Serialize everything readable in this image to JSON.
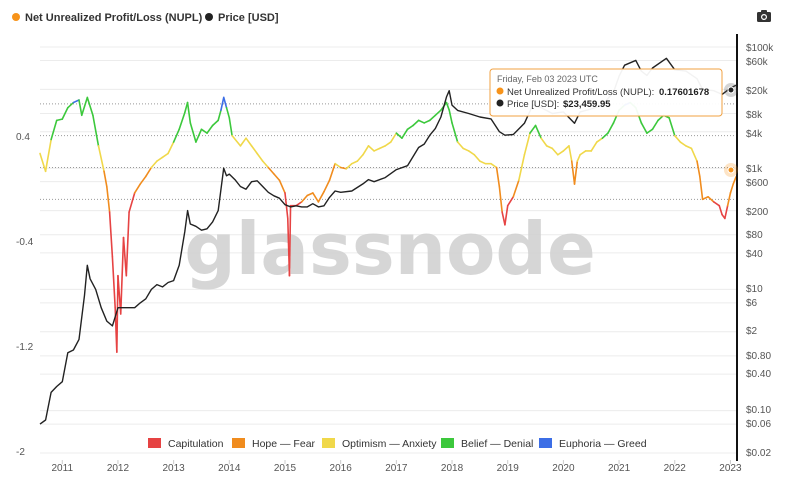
{
  "legend_top": [
    {
      "label": "Net Unrealized Profit/Loss (NUPL)",
      "color": "#f7931a"
    },
    {
      "label": "Price [USD]",
      "color": "#222222"
    }
  ],
  "toolbar": {
    "camera_icon": "camera-icon"
  },
  "watermark": "glassnode",
  "tooltip": {
    "date": "Friday, Feb 03 2023 UTC",
    "nupl_label": "Net Unrealized Profit/Loss (NUPL):",
    "nupl_value": "0.17601678",
    "price_label": "Price [USD]:",
    "price_value": "$23,459.95"
  },
  "zone_legend": [
    {
      "label": "Capitulation",
      "color": "#e64343"
    },
    {
      "label": "Hope — Fear",
      "color": "#f08c1e"
    },
    {
      "label": "Optimism — Anxiety",
      "color": "#f0d84a"
    },
    {
      "label": "Belief — Denial",
      "color": "#3cc83c"
    },
    {
      "label": "Euphoria — Greed",
      "color": "#3c6ee6"
    }
  ],
  "chart_data": {
    "type": "line",
    "x_ticks": [
      "2011",
      "2012",
      "2013",
      "2014",
      "2015",
      "2016",
      "2017",
      "2018",
      "2019",
      "2020",
      "2021",
      "2022",
      "2023"
    ],
    "x_range": [
      2010.6,
      2023.1
    ],
    "y_left": {
      "ticks": [
        "0.4",
        "-0.4",
        "-1.2",
        "-2"
      ],
      "tick_values": [
        0.4,
        -0.4,
        -1.2,
        -2
      ],
      "range": [
        -2,
        1.0
      ]
    },
    "y_right": {
      "scale": "log",
      "ticks": [
        "$100k",
        "$60k",
        "$20k",
        "$8k",
        "$4k",
        "$1k",
        "$600",
        "$200",
        "$80",
        "$40",
        "$10",
        "$6",
        "$2",
        "$0.80",
        "$0.40",
        "$0.10",
        "$0.06",
        "$0.02"
      ],
      "tick_values": [
        100000,
        60000,
        20000,
        8000,
        4000,
        1000,
        600,
        200,
        80,
        40,
        10,
        6,
        2,
        0.8,
        0.4,
        0.1,
        0.06,
        0.02
      ]
    },
    "dotted_levels": [
      0.75,
      0.5,
      0.25,
      0
    ],
    "zone_thresholds": {
      "capitulation_below": 0,
      "hope_fear_below": 0.25,
      "optimism_anxiety_below": 0.5,
      "belief_denial_below": 0.75
    },
    "series": [
      {
        "name": "Net Unrealized Profit/Loss (NUPL)",
        "axis": "left",
        "points": [
          [
            2010.6,
            0.36
          ],
          [
            2010.7,
            0.22
          ],
          [
            2010.8,
            0.47
          ],
          [
            2010.9,
            0.62
          ],
          [
            2011.0,
            0.63
          ],
          [
            2011.1,
            0.72
          ],
          [
            2011.2,
            0.76
          ],
          [
            2011.3,
            0.78
          ],
          [
            2011.35,
            0.66
          ],
          [
            2011.45,
            0.8
          ],
          [
            2011.55,
            0.66
          ],
          [
            2011.65,
            0.42
          ],
          [
            2011.75,
            0.22
          ],
          [
            2011.8,
            0.1
          ],
          [
            2011.85,
            -0.1
          ],
          [
            2011.9,
            -0.45
          ],
          [
            2011.95,
            -0.85
          ],
          [
            2011.98,
            -1.2
          ],
          [
            2012.0,
            -0.6
          ],
          [
            2012.05,
            -0.9
          ],
          [
            2012.1,
            -0.3
          ],
          [
            2012.15,
            -0.6
          ],
          [
            2012.2,
            -0.1
          ],
          [
            2012.3,
            0.05
          ],
          [
            2012.4,
            0.12
          ],
          [
            2012.5,
            0.18
          ],
          [
            2012.6,
            0.25
          ],
          [
            2012.7,
            0.3
          ],
          [
            2012.8,
            0.33
          ],
          [
            2012.9,
            0.36
          ],
          [
            2013.0,
            0.45
          ],
          [
            2013.1,
            0.55
          ],
          [
            2013.2,
            0.68
          ],
          [
            2013.25,
            0.76
          ],
          [
            2013.3,
            0.6
          ],
          [
            2013.4,
            0.45
          ],
          [
            2013.5,
            0.55
          ],
          [
            2013.6,
            0.52
          ],
          [
            2013.7,
            0.58
          ],
          [
            2013.8,
            0.62
          ],
          [
            2013.85,
            0.7
          ],
          [
            2013.9,
            0.8
          ],
          [
            2013.95,
            0.72
          ],
          [
            2014.0,
            0.64
          ],
          [
            2014.05,
            0.5
          ],
          [
            2014.2,
            0.42
          ],
          [
            2014.3,
            0.48
          ],
          [
            2014.4,
            0.42
          ],
          [
            2014.5,
            0.36
          ],
          [
            2014.6,
            0.3
          ],
          [
            2014.7,
            0.25
          ],
          [
            2014.8,
            0.2
          ],
          [
            2014.9,
            0.15
          ],
          [
            2015.0,
            0.05
          ],
          [
            2015.05,
            -0.15
          ],
          [
            2015.08,
            -0.6
          ],
          [
            2015.1,
            -0.05
          ],
          [
            2015.2,
            -0.05
          ],
          [
            2015.3,
            -0.02
          ],
          [
            2015.4,
            0.03
          ],
          [
            2015.5,
            0.05
          ],
          [
            2015.6,
            -0.02
          ],
          [
            2015.7,
            0.06
          ],
          [
            2015.8,
            0.15
          ],
          [
            2015.9,
            0.28
          ],
          [
            2016.0,
            0.25
          ],
          [
            2016.1,
            0.24
          ],
          [
            2016.2,
            0.28
          ],
          [
            2016.3,
            0.3
          ],
          [
            2016.4,
            0.35
          ],
          [
            2016.5,
            0.42
          ],
          [
            2016.6,
            0.38
          ],
          [
            2016.7,
            0.4
          ],
          [
            2016.8,
            0.42
          ],
          [
            2016.9,
            0.45
          ],
          [
            2017.0,
            0.52
          ],
          [
            2017.1,
            0.48
          ],
          [
            2017.2,
            0.55
          ],
          [
            2017.3,
            0.58
          ],
          [
            2017.4,
            0.62
          ],
          [
            2017.5,
            0.6
          ],
          [
            2017.6,
            0.62
          ],
          [
            2017.7,
            0.66
          ],
          [
            2017.8,
            0.7
          ],
          [
            2017.9,
            0.76
          ],
          [
            2017.95,
            0.7
          ],
          [
            2018.0,
            0.6
          ],
          [
            2018.1,
            0.45
          ],
          [
            2018.2,
            0.4
          ],
          [
            2018.3,
            0.38
          ],
          [
            2018.4,
            0.35
          ],
          [
            2018.5,
            0.3
          ],
          [
            2018.6,
            0.28
          ],
          [
            2018.7,
            0.28
          ],
          [
            2018.8,
            0.25
          ],
          [
            2018.85,
            0.1
          ],
          [
            2018.9,
            -0.1
          ],
          [
            2018.95,
            -0.2
          ],
          [
            2019.0,
            -0.05
          ],
          [
            2019.1,
            0.02
          ],
          [
            2019.2,
            0.15
          ],
          [
            2019.3,
            0.35
          ],
          [
            2019.4,
            0.52
          ],
          [
            2019.5,
            0.58
          ],
          [
            2019.6,
            0.48
          ],
          [
            2019.7,
            0.42
          ],
          [
            2019.8,
            0.4
          ],
          [
            2019.9,
            0.35
          ],
          [
            2020.0,
            0.38
          ],
          [
            2020.1,
            0.42
          ],
          [
            2020.15,
            0.3
          ],
          [
            2020.2,
            0.12
          ],
          [
            2020.25,
            0.3
          ],
          [
            2020.3,
            0.35
          ],
          [
            2020.4,
            0.38
          ],
          [
            2020.5,
            0.38
          ],
          [
            2020.6,
            0.45
          ],
          [
            2020.7,
            0.48
          ],
          [
            2020.8,
            0.52
          ],
          [
            2020.9,
            0.6
          ],
          [
            2021.0,
            0.7
          ],
          [
            2021.1,
            0.74
          ],
          [
            2021.2,
            0.76
          ],
          [
            2021.3,
            0.72
          ],
          [
            2021.4,
            0.6
          ],
          [
            2021.5,
            0.52
          ],
          [
            2021.6,
            0.55
          ],
          [
            2021.7,
            0.62
          ],
          [
            2021.8,
            0.66
          ],
          [
            2021.9,
            0.64
          ],
          [
            2022.0,
            0.5
          ],
          [
            2022.1,
            0.45
          ],
          [
            2022.2,
            0.42
          ],
          [
            2022.3,
            0.4
          ],
          [
            2022.4,
            0.3
          ],
          [
            2022.45,
            0.18
          ],
          [
            2022.5,
            0.0
          ],
          [
            2022.6,
            0.02
          ],
          [
            2022.7,
            -0.02
          ],
          [
            2022.8,
            -0.05
          ],
          [
            2022.85,
            -0.12
          ],
          [
            2022.9,
            -0.15
          ],
          [
            2022.95,
            -0.05
          ],
          [
            2023.0,
            0.05
          ],
          [
            2023.05,
            0.12
          ],
          [
            2023.1,
            0.176
          ]
        ]
      },
      {
        "name": "Price [USD]",
        "axis": "right",
        "color": "#222222",
        "points": [
          [
            2010.6,
            0.06
          ],
          [
            2010.7,
            0.07
          ],
          [
            2010.8,
            0.2
          ],
          [
            2010.9,
            0.25
          ],
          [
            2011.0,
            0.3
          ],
          [
            2011.1,
            0.9
          ],
          [
            2011.2,
            1.0
          ],
          [
            2011.3,
            1.5
          ],
          [
            2011.4,
            8
          ],
          [
            2011.45,
            25
          ],
          [
            2011.5,
            15
          ],
          [
            2011.6,
            10
          ],
          [
            2011.7,
            5
          ],
          [
            2011.8,
            3
          ],
          [
            2011.9,
            2.5
          ],
          [
            2012.0,
            5
          ],
          [
            2012.1,
            5
          ],
          [
            2012.2,
            5
          ],
          [
            2012.3,
            5
          ],
          [
            2012.4,
            6
          ],
          [
            2012.5,
            7
          ],
          [
            2012.6,
            10
          ],
          [
            2012.7,
            12
          ],
          [
            2012.8,
            11
          ],
          [
            2012.9,
            13
          ],
          [
            2013.0,
            14
          ],
          [
            2013.1,
            25
          ],
          [
            2013.2,
            90
          ],
          [
            2013.25,
            200
          ],
          [
            2013.3,
            120
          ],
          [
            2013.4,
            110
          ],
          [
            2013.5,
            95
          ],
          [
            2013.6,
            100
          ],
          [
            2013.7,
            130
          ],
          [
            2013.8,
            200
          ],
          [
            2013.9,
            1000
          ],
          [
            2013.95,
            750
          ],
          [
            2014.0,
            800
          ],
          [
            2014.1,
            650
          ],
          [
            2014.2,
            500
          ],
          [
            2014.3,
            450
          ],
          [
            2014.4,
            600
          ],
          [
            2014.5,
            620
          ],
          [
            2014.6,
            500
          ],
          [
            2014.7,
            400
          ],
          [
            2014.8,
            350
          ],
          [
            2014.9,
            320
          ],
          [
            2015.0,
            250
          ],
          [
            2015.1,
            230
          ],
          [
            2015.2,
            240
          ],
          [
            2015.3,
            230
          ],
          [
            2015.4,
            230
          ],
          [
            2015.5,
            260
          ],
          [
            2015.6,
            230
          ],
          [
            2015.7,
            240
          ],
          [
            2015.8,
            330
          ],
          [
            2015.9,
            420
          ],
          [
            2016.0,
            400
          ],
          [
            2016.2,
            420
          ],
          [
            2016.4,
            550
          ],
          [
            2016.5,
            650
          ],
          [
            2016.6,
            600
          ],
          [
            2016.8,
            700
          ],
          [
            2017.0,
            950
          ],
          [
            2017.2,
            1100
          ],
          [
            2017.4,
            2200
          ],
          [
            2017.5,
            2500
          ],
          [
            2017.6,
            3500
          ],
          [
            2017.7,
            4500
          ],
          [
            2017.8,
            7000
          ],
          [
            2017.9,
            15000
          ],
          [
            2017.95,
            19000
          ],
          [
            2018.0,
            11000
          ],
          [
            2018.1,
            9000
          ],
          [
            2018.3,
            8000
          ],
          [
            2018.5,
            7000
          ],
          [
            2018.7,
            6500
          ],
          [
            2018.85,
            4000
          ],
          [
            2018.95,
            3500
          ],
          [
            2019.1,
            3600
          ],
          [
            2019.3,
            5500
          ],
          [
            2019.45,
            11000
          ],
          [
            2019.6,
            10000
          ],
          [
            2019.8,
            8000
          ],
          [
            2020.0,
            8500
          ],
          [
            2020.2,
            5500
          ],
          [
            2020.3,
            8500
          ],
          [
            2020.5,
            9500
          ],
          [
            2020.7,
            11000
          ],
          [
            2020.9,
            18000
          ],
          [
            2021.0,
            33000
          ],
          [
            2021.1,
            50000
          ],
          [
            2021.3,
            60000
          ],
          [
            2021.4,
            40000
          ],
          [
            2021.5,
            34000
          ],
          [
            2021.6,
            45000
          ],
          [
            2021.85,
            65000
          ],
          [
            2022.0,
            42000
          ],
          [
            2022.2,
            40000
          ],
          [
            2022.4,
            30000
          ],
          [
            2022.5,
            20000
          ],
          [
            2022.7,
            19000
          ],
          [
            2022.85,
            16500
          ],
          [
            2023.0,
            21000
          ],
          [
            2023.1,
            23459.95
          ]
        ]
      }
    ]
  }
}
